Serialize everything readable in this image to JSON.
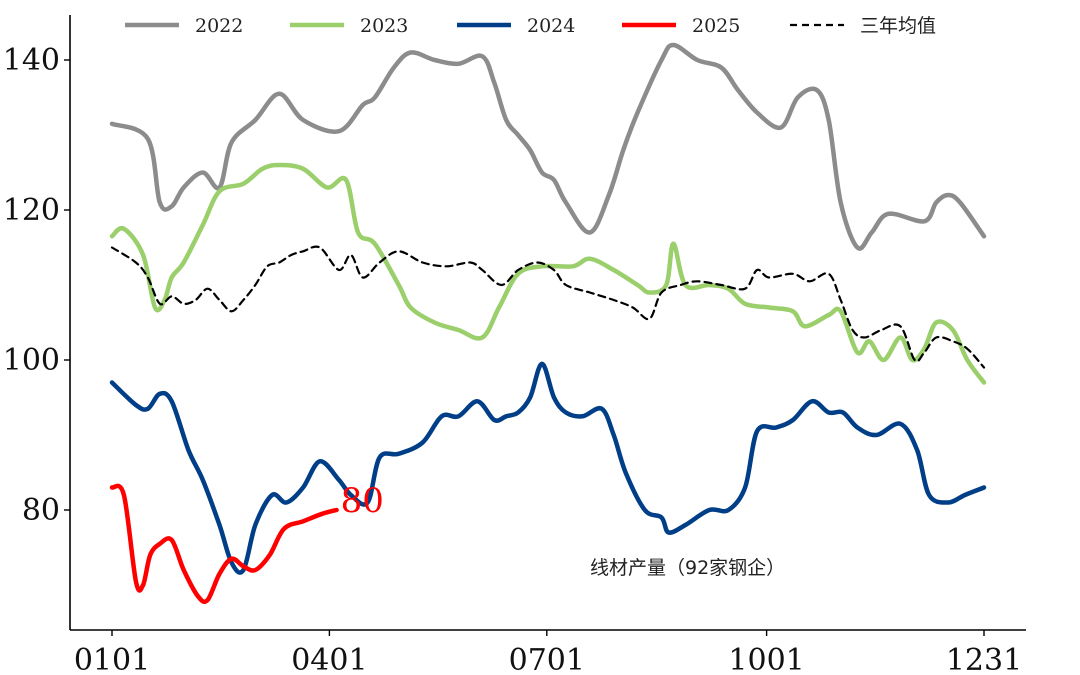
{
  "chart_data": {
    "type": "line",
    "title": "",
    "annotation": "线材产量（92家钢企）",
    "xlabel": "",
    "ylabel": "",
    "x_ticks": [
      {
        "label": "0101",
        "day": 0
      },
      {
        "label": "0401",
        "day": 91
      },
      {
        "label": "0701",
        "day": 182
      },
      {
        "label": "1001",
        "day": 274
      },
      {
        "label": "1231",
        "day": 365
      }
    ],
    "xlim": [
      0,
      365
    ],
    "y_ticks": [
      80,
      100,
      120,
      140
    ],
    "ylim": [
      64,
      146
    ],
    "legend_position": "top",
    "series": [
      {
        "name": "2022",
        "color": "#8c8c8c",
        "dash": false,
        "points": [
          [
            0,
            131.5
          ],
          [
            15,
            129.5
          ],
          [
            20,
            121
          ],
          [
            25,
            120.5
          ],
          [
            30,
            123
          ],
          [
            38,
            125
          ],
          [
            45,
            123
          ],
          [
            50,
            129
          ],
          [
            60,
            132
          ],
          [
            70,
            135.5
          ],
          [
            80,
            132
          ],
          [
            95,
            130.5
          ],
          [
            105,
            134
          ],
          [
            110,
            135
          ],
          [
            118,
            139
          ],
          [
            125,
            141
          ],
          [
            135,
            140
          ],
          [
            145,
            139.5
          ],
          [
            155,
            140.5
          ],
          [
            160,
            137
          ],
          [
            165,
            132
          ],
          [
            170,
            130
          ],
          [
            175,
            128
          ],
          [
            180,
            125
          ],
          [
            185,
            124
          ],
          [
            190,
            121
          ],
          [
            200,
            117
          ],
          [
            208,
            122
          ],
          [
            214,
            128
          ],
          [
            220,
            133
          ],
          [
            230,
            140
          ],
          [
            235,
            142
          ],
          [
            245,
            140
          ],
          [
            255,
            139
          ],
          [
            262,
            136
          ],
          [
            270,
            133
          ],
          [
            280,
            131
          ],
          [
            287,
            135
          ],
          [
            295,
            136
          ],
          [
            300,
            132
          ],
          [
            305,
            121
          ],
          [
            312,
            115
          ],
          [
            318,
            117
          ],
          [
            325,
            119.5
          ],
          [
            340,
            118.5
          ],
          [
            345,
            121
          ],
          [
            350,
            122
          ],
          [
            355,
            121
          ],
          [
            365,
            116.5
          ]
        ]
      },
      {
        "name": "2023",
        "color": "#9bcf6b",
        "dash": false,
        "points": [
          [
            0,
            116.5
          ],
          [
            5,
            117.5
          ],
          [
            13,
            114
          ],
          [
            18,
            107
          ],
          [
            22,
            108
          ],
          [
            25,
            111
          ],
          [
            30,
            113
          ],
          [
            38,
            118
          ],
          [
            45,
            122.5
          ],
          [
            55,
            123.5
          ],
          [
            63,
            125.5
          ],
          [
            70,
            126
          ],
          [
            80,
            125.5
          ],
          [
            90,
            123
          ],
          [
            98,
            124
          ],
          [
            103,
            117
          ],
          [
            110,
            115.5
          ],
          [
            120,
            110
          ],
          [
            125,
            107
          ],
          [
            135,
            105
          ],
          [
            145,
            104
          ],
          [
            155,
            103
          ],
          [
            162,
            107
          ],
          [
            170,
            111.5
          ],
          [
            180,
            112.5
          ],
          [
            193,
            112.5
          ],
          [
            200,
            113.5
          ],
          [
            210,
            112
          ],
          [
            220,
            110
          ],
          [
            225,
            109
          ],
          [
            232,
            110
          ],
          [
            235,
            115.5
          ],
          [
            240,
            110
          ],
          [
            250,
            110
          ],
          [
            258,
            109.5
          ],
          [
            265,
            107.5
          ],
          [
            275,
            107
          ],
          [
            285,
            106.5
          ],
          [
            290,
            104.5
          ],
          [
            300,
            106
          ],
          [
            305,
            106.5
          ],
          [
            312,
            101
          ],
          [
            317,
            102.5
          ],
          [
            323,
            100
          ],
          [
            330,
            103
          ],
          [
            335,
            100
          ],
          [
            340,
            101.5
          ],
          [
            345,
            105
          ],
          [
            352,
            104
          ],
          [
            358,
            100
          ],
          [
            365,
            97
          ]
        ]
      },
      {
        "name": "2024",
        "color": "#003f87",
        "dash": false,
        "points": [
          [
            0,
            97
          ],
          [
            10,
            94
          ],
          [
            15,
            93.5
          ],
          [
            20,
            95.5
          ],
          [
            25,
            94.5
          ],
          [
            32,
            88
          ],
          [
            38,
            84
          ],
          [
            45,
            78
          ],
          [
            50,
            73
          ],
          [
            55,
            72
          ],
          [
            60,
            78
          ],
          [
            67,
            82
          ],
          [
            73,
            81
          ],
          [
            80,
            83
          ],
          [
            87,
            86.5
          ],
          [
            95,
            84
          ],
          [
            100,
            82
          ],
          [
            107,
            81
          ],
          [
            112,
            87
          ],
          [
            120,
            87.5
          ],
          [
            130,
            89
          ],
          [
            138,
            92.5
          ],
          [
            145,
            92.5
          ],
          [
            153,
            94.5
          ],
          [
            160,
            92
          ],
          [
            165,
            92.5
          ],
          [
            170,
            93
          ],
          [
            175,
            95
          ],
          [
            180,
            99.5
          ],
          [
            185,
            95
          ],
          [
            190,
            93
          ],
          [
            197,
            92.5
          ],
          [
            205,
            93.5
          ],
          [
            210,
            90
          ],
          [
            215,
            85
          ],
          [
            223,
            80
          ],
          [
            230,
            79
          ],
          [
            233,
            77
          ],
          [
            240,
            78
          ],
          [
            250,
            80
          ],
          [
            258,
            80
          ],
          [
            265,
            83
          ],
          [
            270,
            90.5
          ],
          [
            278,
            91
          ],
          [
            285,
            92
          ],
          [
            293,
            94.5
          ],
          [
            300,
            93
          ],
          [
            306,
            93
          ],
          [
            312,
            91
          ],
          [
            320,
            90
          ],
          [
            330,
            91.5
          ],
          [
            337,
            88
          ],
          [
            342,
            82
          ],
          [
            350,
            81
          ],
          [
            357,
            82
          ],
          [
            365,
            83
          ]
        ]
      },
      {
        "name": "2025",
        "color": "#ff0000",
        "dash": false,
        "points": [
          [
            0,
            83
          ],
          [
            5,
            82
          ],
          [
            10,
            70.5
          ],
          [
            13,
            70
          ],
          [
            16,
            74
          ],
          [
            20,
            75.5
          ],
          [
            25,
            76
          ],
          [
            30,
            72
          ],
          [
            36,
            68.5
          ],
          [
            40,
            68
          ],
          [
            45,
            71.5
          ],
          [
            50,
            73.5
          ],
          [
            55,
            72.5
          ],
          [
            60,
            72
          ],
          [
            66,
            74
          ],
          [
            72,
            77.5
          ],
          [
            80,
            78.5
          ],
          [
            88,
            79.5
          ],
          [
            94,
            80
          ]
        ],
        "end_label": "80"
      },
      {
        "name": "三年均值",
        "color": "#000000",
        "dash": true,
        "points": [
          [
            0,
            115
          ],
          [
            10,
            113
          ],
          [
            15,
            111
          ],
          [
            20,
            107.5
          ],
          [
            25,
            108.5
          ],
          [
            30,
            107.5
          ],
          [
            35,
            108
          ],
          [
            40,
            109.5
          ],
          [
            45,
            108
          ],
          [
            50,
            106.5
          ],
          [
            55,
            108
          ],
          [
            60,
            110
          ],
          [
            65,
            112.5
          ],
          [
            70,
            113
          ],
          [
            75,
            114
          ],
          [
            80,
            114.5
          ],
          [
            87,
            115
          ],
          [
            95,
            112
          ],
          [
            100,
            114
          ],
          [
            105,
            111
          ],
          [
            112,
            113
          ],
          [
            120,
            114.5
          ],
          [
            130,
            113
          ],
          [
            140,
            112.5
          ],
          [
            150,
            113
          ],
          [
            155,
            112
          ],
          [
            163,
            110
          ],
          [
            170,
            112
          ],
          [
            178,
            113
          ],
          [
            185,
            112
          ],
          [
            190,
            110
          ],
          [
            200,
            109
          ],
          [
            210,
            108
          ],
          [
            218,
            107
          ],
          [
            225,
            105.5
          ],
          [
            230,
            109
          ],
          [
            238,
            110
          ],
          [
            245,
            110.5
          ],
          [
            255,
            110
          ],
          [
            265,
            109.5
          ],
          [
            270,
            112
          ],
          [
            275,
            111
          ],
          [
            285,
            111.5
          ],
          [
            292,
            110.5
          ],
          [
            300,
            111.5
          ],
          [
            305,
            108
          ],
          [
            310,
            104
          ],
          [
            315,
            103
          ],
          [
            322,
            104
          ],
          [
            330,
            104.5
          ],
          [
            336,
            100
          ],
          [
            340,
            101
          ],
          [
            345,
            103
          ],
          [
            352,
            102.5
          ],
          [
            358,
            101.5
          ],
          [
            365,
            99
          ]
        ]
      }
    ]
  }
}
